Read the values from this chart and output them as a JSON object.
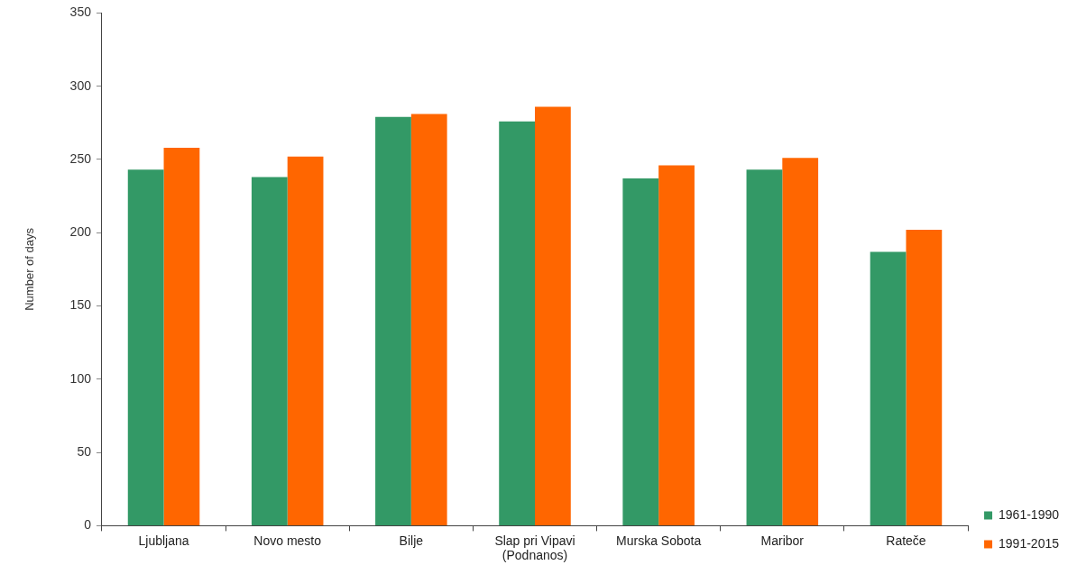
{
  "chart_data": {
    "type": "bar",
    "ylabel": "Number of days",
    "categories": [
      "Ljubljana",
      "Novo mesto",
      "Bilje",
      "Slap pri Vipavi (Podnanos)",
      "Murska Sobota",
      "Maribor",
      "Rateče"
    ],
    "series": [
      {
        "name": "1961-1990",
        "color": "#339966",
        "values": [
          243,
          238,
          279,
          276,
          237,
          243,
          187
        ]
      },
      {
        "name": "1991-2015",
        "color": "#ff6600",
        "values": [
          258,
          252,
          281,
          286,
          246,
          251,
          202
        ]
      }
    ],
    "ylim": [
      0,
      350
    ],
    "yticks": [
      0,
      50,
      100,
      150,
      200,
      250,
      300,
      350
    ],
    "grid": false,
    "legend": "bottom right"
  }
}
